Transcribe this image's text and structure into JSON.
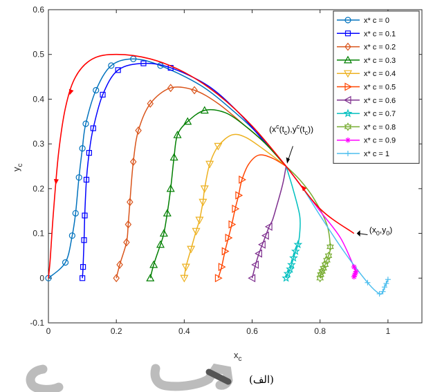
{
  "caption": "(الف)",
  "chart_data": {
    "type": "line",
    "xlabel": "x",
    "xlabel_sub": "c",
    "ylabel": "y",
    "ylabel_sub": "c",
    "xlim": [
      0,
      1.1
    ],
    "ylim": [
      -0.1,
      0.6
    ],
    "xticks": [
      0,
      0.2,
      0.4,
      0.6,
      0.8,
      1
    ],
    "xtick_labels": [
      "0",
      "0.2",
      "0.4",
      "0.6",
      "0.8",
      "1"
    ],
    "yticks": [
      -0.1,
      0,
      0.1,
      0.2,
      0.3,
      0.4,
      0.5,
      0.6
    ],
    "ytick_labels": [
      "-0.1",
      "0",
      "0.1",
      "0.2",
      "0.3",
      "0.4",
      "0.5",
      "0.6"
    ],
    "legend_position": "top-right",
    "annotations": [
      {
        "text": "(x",
        "sup": "c",
        "mid": "(t",
        "sub": "c",
        "mid2": "),y",
        "sup2": "c",
        "mid3": "(t",
        "sub2": "c",
        "end": "))",
        "point": [
          0.7,
          0.25
        ]
      },
      {
        "text": "(x",
        "sub": "0",
        "mid": ",y",
        "sub2": "0",
        "end": ")",
        "point": [
          0.9,
          0.1
        ]
      }
    ],
    "red_trajectory": [
      [
        0.9,
        0.1
      ],
      [
        0.8,
        0.155
      ],
      [
        0.7,
        0.25
      ],
      [
        0.6,
        0.34
      ],
      [
        0.5,
        0.41
      ],
      [
        0.4,
        0.46
      ],
      [
        0.3,
        0.49
      ],
      [
        0.2,
        0.5
      ],
      [
        0.13,
        0.49
      ],
      [
        0.08,
        0.45
      ],
      [
        0.05,
        0.38
      ],
      [
        0.03,
        0.28
      ],
      [
        0.015,
        0.15
      ],
      [
        0.005,
        0.04
      ],
      [
        0,
        0
      ]
    ],
    "series": [
      {
        "name": "x* c = 0",
        "color": "#0072BD",
        "marker": "circle",
        "points": [
          [
            0,
            0
          ],
          [
            0.05,
            0.035
          ],
          [
            0.07,
            0.095
          ],
          [
            0.08,
            0.145
          ],
          [
            0.09,
            0.225
          ],
          [
            0.1,
            0.29
          ],
          [
            0.11,
            0.345
          ],
          [
            0.14,
            0.42
          ],
          [
            0.185,
            0.475
          ],
          [
            0.25,
            0.49
          ],
          [
            0.33,
            0.475
          ],
          [
            0.45,
            0.43
          ],
          [
            0.55,
            0.37
          ],
          [
            0.62,
            0.32
          ],
          [
            0.7,
            0.25
          ]
        ]
      },
      {
        "name": "x* c = 0.1",
        "color": "#0000FF",
        "marker": "square",
        "points": [
          [
            0.1,
            0
          ],
          [
            0.102,
            0.025
          ],
          [
            0.105,
            0.085
          ],
          [
            0.107,
            0.14
          ],
          [
            0.112,
            0.22
          ],
          [
            0.12,
            0.28
          ],
          [
            0.132,
            0.335
          ],
          [
            0.16,
            0.41
          ],
          [
            0.205,
            0.465
          ],
          [
            0.28,
            0.48
          ],
          [
            0.36,
            0.47
          ],
          [
            0.47,
            0.43
          ],
          [
            0.56,
            0.37
          ],
          [
            0.63,
            0.31
          ],
          [
            0.7,
            0.25
          ]
        ]
      },
      {
        "name": "x* c = 0.2",
        "color": "#D95319",
        "marker": "diamond",
        "points": [
          [
            0.2,
            0
          ],
          [
            0.21,
            0.03
          ],
          [
            0.23,
            0.08
          ],
          [
            0.235,
            0.12
          ],
          [
            0.24,
            0.17
          ],
          [
            0.25,
            0.26
          ],
          [
            0.265,
            0.33
          ],
          [
            0.3,
            0.39
          ],
          [
            0.36,
            0.425
          ],
          [
            0.43,
            0.42
          ],
          [
            0.5,
            0.39
          ],
          [
            0.58,
            0.34
          ],
          [
            0.64,
            0.3
          ],
          [
            0.7,
            0.25
          ]
        ]
      },
      {
        "name": "x* c = 0.3",
        "color": "#007F00",
        "marker": "triangle-up",
        "points": [
          [
            0.3,
            0
          ],
          [
            0.31,
            0.03
          ],
          [
            0.33,
            0.075
          ],
          [
            0.34,
            0.1
          ],
          [
            0.35,
            0.145
          ],
          [
            0.36,
            0.2
          ],
          [
            0.37,
            0.27
          ],
          [
            0.38,
            0.32
          ],
          [
            0.41,
            0.35
          ],
          [
            0.46,
            0.375
          ],
          [
            0.52,
            0.37
          ],
          [
            0.58,
            0.34
          ],
          [
            0.64,
            0.3
          ],
          [
            0.7,
            0.25
          ]
        ]
      },
      {
        "name": "x* c = 0.4",
        "color": "#EDB120",
        "marker": "triangle-down",
        "points": [
          [
            0.4,
            0
          ],
          [
            0.405,
            0.025
          ],
          [
            0.42,
            0.065
          ],
          [
            0.435,
            0.105
          ],
          [
            0.445,
            0.13
          ],
          [
            0.455,
            0.17
          ],
          [
            0.46,
            0.2
          ],
          [
            0.475,
            0.255
          ],
          [
            0.5,
            0.295
          ],
          [
            0.54,
            0.32
          ],
          [
            0.58,
            0.315
          ],
          [
            0.63,
            0.29
          ],
          [
            0.7,
            0.25
          ]
        ]
      },
      {
        "name": "x* c = 0.5",
        "color": "#FF4500",
        "marker": "triangle-right",
        "points": [
          [
            0.5,
            0
          ],
          [
            0.51,
            0.025
          ],
          [
            0.52,
            0.06
          ],
          [
            0.53,
            0.09
          ],
          [
            0.54,
            0.12
          ],
          [
            0.55,
            0.155
          ],
          [
            0.56,
            0.185
          ],
          [
            0.57,
            0.22
          ],
          [
            0.59,
            0.255
          ],
          [
            0.62,
            0.275
          ],
          [
            0.66,
            0.268
          ],
          [
            0.7,
            0.25
          ]
        ]
      },
      {
        "name": "x* c = 0.6",
        "color": "#7E2F8E",
        "marker": "triangle-left",
        "points": [
          [
            0.6,
            0
          ],
          [
            0.61,
            0.03
          ],
          [
            0.62,
            0.055
          ],
          [
            0.63,
            0.075
          ],
          [
            0.64,
            0.095
          ],
          [
            0.65,
            0.115
          ],
          [
            0.66,
            0.13
          ],
          [
            0.67,
            0.155
          ],
          [
            0.69,
            0.21
          ],
          [
            0.7,
            0.25
          ]
        ]
      },
      {
        "name": "x* c = 0.7",
        "color": "#00BFBF",
        "marker": "star",
        "points": [
          [
            0.7,
            0
          ],
          [
            0.705,
            0.01
          ],
          [
            0.712,
            0.02
          ],
          [
            0.716,
            0.03
          ],
          [
            0.722,
            0.045
          ],
          [
            0.728,
            0.06
          ],
          [
            0.735,
            0.075
          ],
          [
            0.74,
            0.1
          ],
          [
            0.74,
            0.14
          ],
          [
            0.72,
            0.2
          ],
          [
            0.7,
            0.25
          ]
        ]
      },
      {
        "name": "x* c = 0.8",
        "color": "#77AC30",
        "marker": "hexagram",
        "points": [
          [
            0.8,
            0
          ],
          [
            0.802,
            0.008
          ],
          [
            0.806,
            0.015
          ],
          [
            0.81,
            0.022
          ],
          [
            0.815,
            0.03
          ],
          [
            0.82,
            0.04
          ],
          [
            0.825,
            0.05
          ],
          [
            0.83,
            0.07
          ],
          [
            0.82,
            0.12
          ],
          [
            0.78,
            0.18
          ],
          [
            0.74,
            0.22
          ],
          [
            0.7,
            0.25
          ]
        ]
      },
      {
        "name": "x* c = 0.9",
        "color": "#FF00FF",
        "marker": "asterisk",
        "points": [
          [
            0.9,
            0.003
          ],
          [
            0.902,
            0.007
          ],
          [
            0.904,
            0.011
          ],
          [
            0.906,
            0.015
          ],
          [
            0.9,
            0.025
          ],
          [
            0.86,
            0.09
          ],
          [
            0.8,
            0.15
          ],
          [
            0.75,
            0.2
          ],
          [
            0.7,
            0.25
          ]
        ]
      },
      {
        "name": "x* c = 1",
        "color": "#4DBEEE",
        "marker": "plus",
        "points": [
          [
            1.0,
            -0.003
          ],
          [
            0.995,
            -0.012
          ],
          [
            0.99,
            -0.02
          ],
          [
            0.985,
            -0.03
          ],
          [
            0.975,
            -0.035
          ],
          [
            0.94,
            -0.01
          ],
          [
            0.87,
            0.06
          ],
          [
            0.8,
            0.14
          ],
          [
            0.75,
            0.2
          ],
          [
            0.7,
            0.25
          ]
        ]
      }
    ]
  }
}
